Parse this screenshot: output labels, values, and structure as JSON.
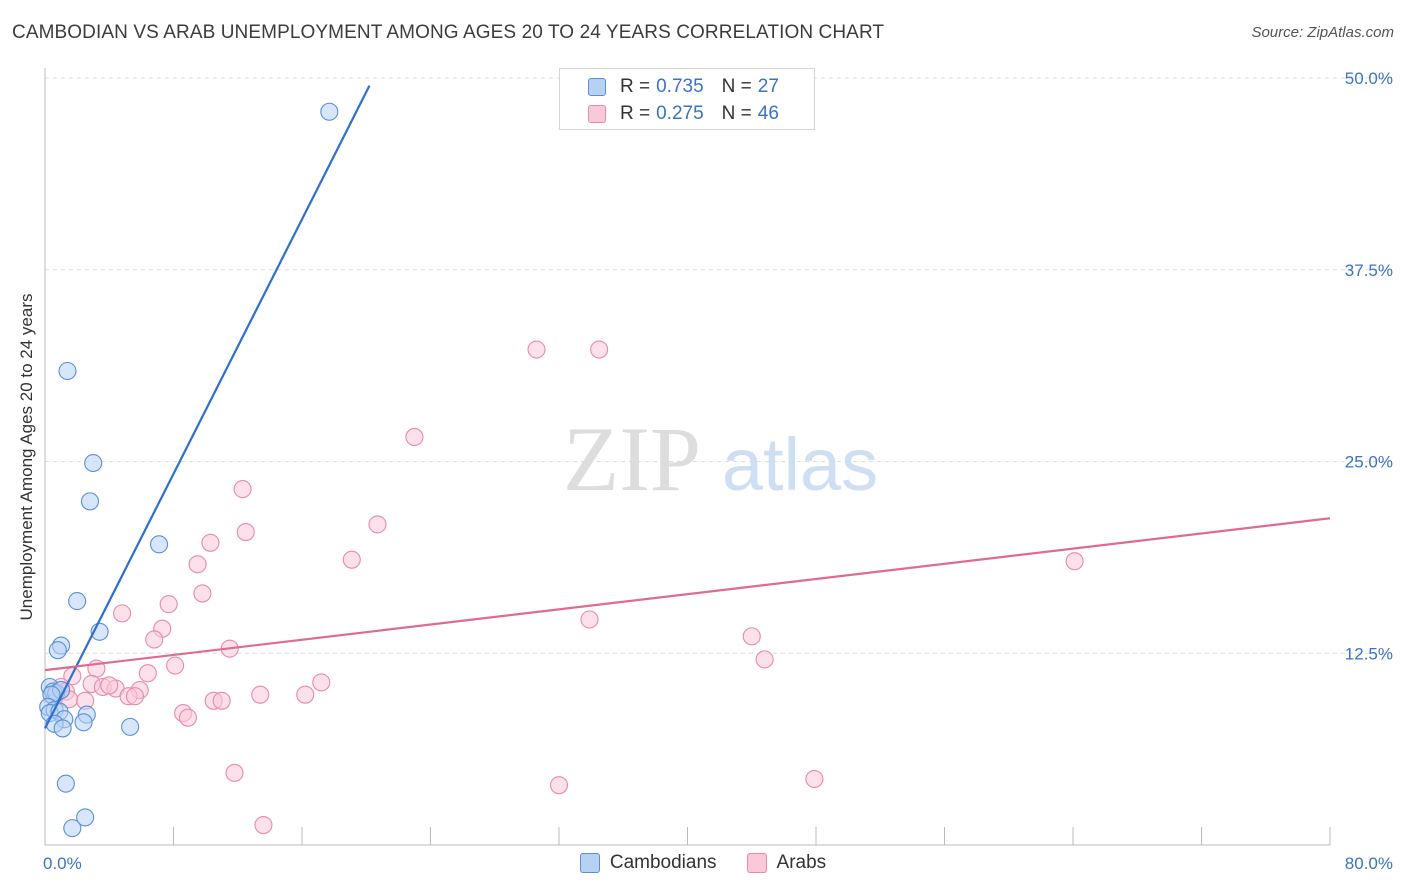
{
  "header": {
    "title": "CAMBODIAN VS ARAB UNEMPLOYMENT AMONG AGES 20 TO 24 YEARS CORRELATION CHART",
    "source": "Source: ZipAtlas.com"
  },
  "watermark": {
    "zip": "ZIP",
    "atlas": "atlas"
  },
  "colors": {
    "cambodian_fill": "#b7d1f5",
    "cambodian_stroke": "#5b8fd6",
    "cambodian_line": "#2f6fd0",
    "arab_fill": "#f9c9d8",
    "arab_stroke": "#e88aa9",
    "arab_line": "#e06a93",
    "tick_text": "#3a73c4"
  },
  "legend": {
    "rows": [
      {
        "r_label": "R =",
        "r_value": "0.735",
        "n_label": "N =",
        "n_value": "27"
      },
      {
        "r_label": "R =",
        "r_value": "0.275",
        "n_label": "N =",
        "n_value": "46"
      }
    ]
  },
  "bottom_legend": [
    "Cambodians",
    "Arabs"
  ],
  "chart_data": {
    "type": "scatter",
    "title": "CAMBODIAN VS ARAB UNEMPLOYMENT AMONG AGES 20 TO 24 YEARS CORRELATION CHART",
    "xlabel": "",
    "ylabel": "Unemployment Among Ages 20 to 24 years",
    "xlim": [
      0,
      80
    ],
    "ylim": [
      0,
      50
    ],
    "x_tick_labels": [
      "0.0%",
      "80.0%"
    ],
    "y_ticks": [
      12.5,
      25.0,
      37.5,
      50.0
    ],
    "y_tick_labels": [
      "12.5%",
      "25.0%",
      "37.5%",
      "50.0%"
    ],
    "grid": true,
    "legend_position": "top-center",
    "series": [
      {
        "name": "Cambodians",
        "R": 0.735,
        "N": 27,
        "trend": [
          [
            0.0,
            7.6
          ],
          [
            20.2,
            49.5
          ]
        ],
        "points": [
          [
            17.7,
            47.8
          ],
          [
            1.4,
            30.9
          ],
          [
            3.0,
            24.9
          ],
          [
            2.8,
            22.4
          ],
          [
            7.1,
            19.6
          ],
          [
            2.0,
            15.9
          ],
          [
            3.4,
            13.9
          ],
          [
            1.0,
            13.0
          ],
          [
            0.8,
            12.7
          ],
          [
            0.3,
            10.3
          ],
          [
            0.5,
            10.0
          ],
          [
            0.7,
            9.9
          ],
          [
            1.0,
            10.1
          ],
          [
            0.4,
            9.8
          ],
          [
            0.2,
            9.0
          ],
          [
            0.6,
            8.8
          ],
          [
            0.3,
            8.6
          ],
          [
            0.9,
            8.7
          ],
          [
            2.6,
            8.5
          ],
          [
            1.2,
            8.2
          ],
          [
            2.4,
            8.0
          ],
          [
            0.6,
            7.9
          ],
          [
            1.1,
            7.6
          ],
          [
            5.3,
            7.7
          ],
          [
            1.3,
            4.0
          ],
          [
            2.5,
            1.8
          ],
          [
            1.7,
            1.1
          ]
        ]
      },
      {
        "name": "Arabs",
        "R": 0.275,
        "N": 46,
        "trend": [
          [
            0.0,
            11.4
          ],
          [
            80.0,
            21.3
          ]
        ],
        "points": [
          [
            30.6,
            32.3
          ],
          [
            34.5,
            32.3
          ],
          [
            23.0,
            26.6
          ],
          [
            12.3,
            23.2
          ],
          [
            20.7,
            20.9
          ],
          [
            12.5,
            20.4
          ],
          [
            10.3,
            19.7
          ],
          [
            19.1,
            18.6
          ],
          [
            9.5,
            18.3
          ],
          [
            64.1,
            18.5
          ],
          [
            9.8,
            16.4
          ],
          [
            7.7,
            15.7
          ],
          [
            4.8,
            15.1
          ],
          [
            33.9,
            14.7
          ],
          [
            7.3,
            14.1
          ],
          [
            44.0,
            13.6
          ],
          [
            6.8,
            13.4
          ],
          [
            11.5,
            12.8
          ],
          [
            44.8,
            12.1
          ],
          [
            8.1,
            11.7
          ],
          [
            3.2,
            11.5
          ],
          [
            6.4,
            11.2
          ],
          [
            1.7,
            11.0
          ],
          [
            17.2,
            10.6
          ],
          [
            2.9,
            10.5
          ],
          [
            3.6,
            10.3
          ],
          [
            4.4,
            10.2
          ],
          [
            5.9,
            10.1
          ],
          [
            1.0,
            10.3
          ],
          [
            1.3,
            10.0
          ],
          [
            4.0,
            10.4
          ],
          [
            13.4,
            9.8
          ],
          [
            16.2,
            9.8
          ],
          [
            5.2,
            9.7
          ],
          [
            5.6,
            9.7
          ],
          [
            0.6,
            9.6
          ],
          [
            1.5,
            9.5
          ],
          [
            2.5,
            9.4
          ],
          [
            10.5,
            9.4
          ],
          [
            11.0,
            9.4
          ],
          [
            8.6,
            8.6
          ],
          [
            8.9,
            8.3
          ],
          [
            11.8,
            4.7
          ],
          [
            47.9,
            4.3
          ],
          [
            32.0,
            3.9
          ],
          [
            13.6,
            1.3
          ]
        ]
      }
    ]
  }
}
